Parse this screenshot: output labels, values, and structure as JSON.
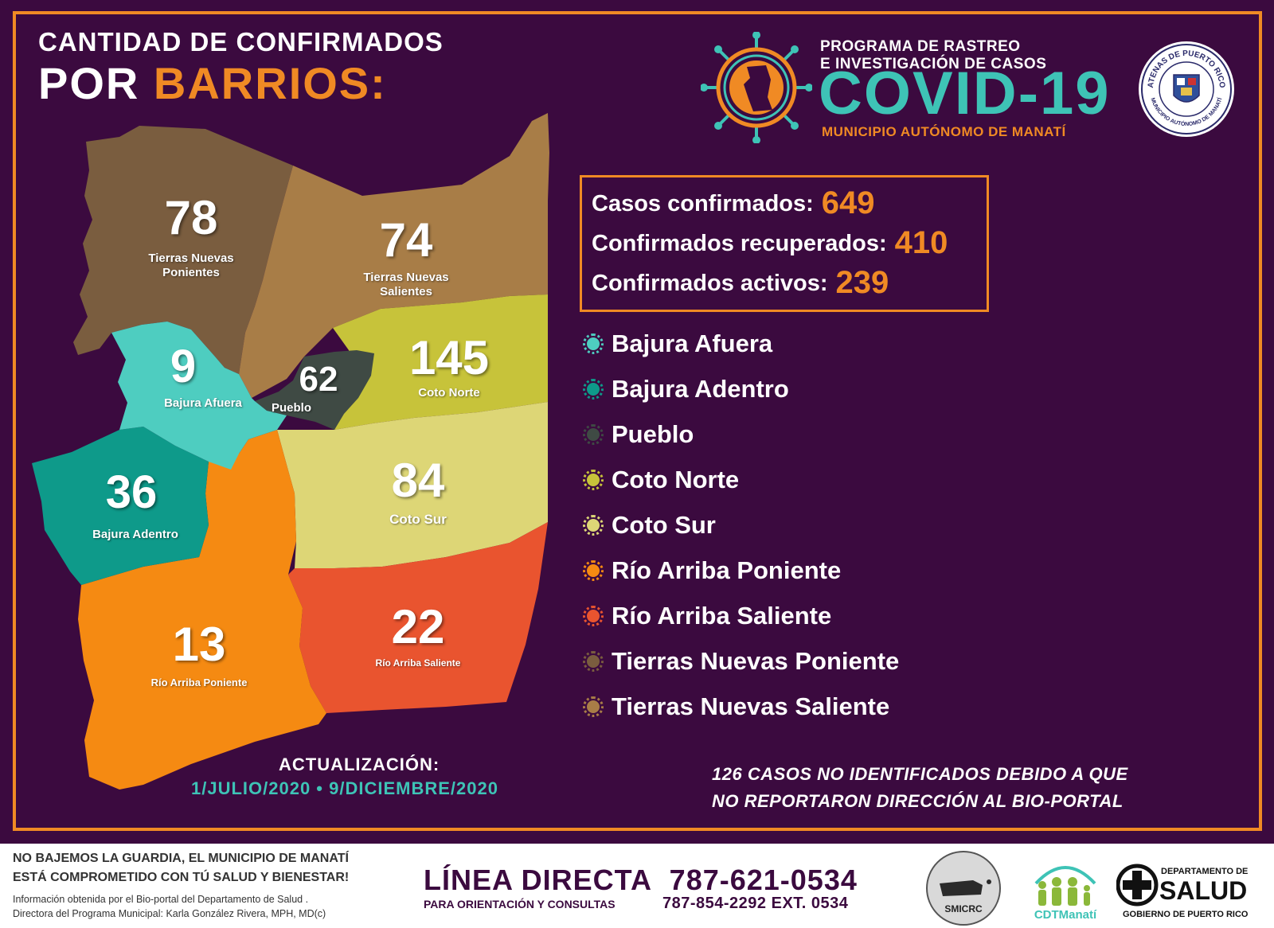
{
  "title": {
    "line1": "CANTIDAD DE CONFIRMADOS",
    "line2a": "POR",
    "line2b": "BARRIOS:"
  },
  "header": {
    "program_line1": "PROGRAMA DE RASTREO",
    "program_line2": "E INVESTIGACIÓN DE CASOS",
    "covid": "COVID-19",
    "municipality": "MUNICIPIO AUTÓNOMO DE MANATÍ",
    "seal_text_top": "ATENAS DE PUERTO RICO",
    "seal_text_bottom": "MUNICIPIO AUTÓNOMO DE MANATÍ"
  },
  "stats": {
    "confirmed_label": "Casos confirmados:",
    "confirmed_value": "649",
    "recovered_label": "Confirmados recuperados:",
    "recovered_value": "410",
    "active_label": "Confirmados activos:",
    "active_value": "239"
  },
  "barrios": [
    {
      "name": "Bajura Afuera",
      "count": "9",
      "map_label": "Bajura Afuera",
      "color": "#4ecdc0"
    },
    {
      "name": "Bajura Adentro",
      "count": "36",
      "map_label": "Bajura Adentro",
      "color": "#0e9a8a"
    },
    {
      "name": "Pueblo",
      "count": "62",
      "map_label": "Pueblo",
      "color": "#3f4a44"
    },
    {
      "name": "Coto Norte",
      "count": "145",
      "map_label": "Coto Norte",
      "color": "#c7c33a"
    },
    {
      "name": "Coto Sur",
      "count": "84",
      "map_label": "Coto Sur",
      "color": "#ddd676"
    },
    {
      "name": "Río Arriba Poniente",
      "count": "13",
      "map_label": "Río Arriba Poniente",
      "color": "#f58a12"
    },
    {
      "name": "Río Arriba Saliente",
      "count": "22",
      "map_label": "Río Arriba Saliente",
      "color": "#e9542f"
    },
    {
      "name": "Tierras Nuevas Poniente",
      "count": "78",
      "map_label_1": "Tierras Nuevas",
      "map_label_2": "Ponientes",
      "color": "#7a5d3f"
    },
    {
      "name": "Tierras Nuevas Saliente",
      "count": "74",
      "map_label_1": "Tierras Nuevas",
      "map_label_2": "Salientes",
      "color": "#a87d47"
    }
  ],
  "update": {
    "label": "ACTUALIZACIÓN:",
    "range": "1/JULIO/2020 • 9/DICIEMBRE/2020"
  },
  "note": {
    "line1": "126 CASOS NO IDENTIFICADOS DEBIDO A QUE",
    "line2": "NO REPORTARON DIRECCIÓN AL BIO-PORTAL"
  },
  "footer": {
    "slogan1": "NO BAJEMOS LA GUARDIA, EL MUNICIPIO DE MANATÍ",
    "slogan2": "ESTÁ COMPROMETIDO CON TÚ SALUD Y BIENESTAR!",
    "source": "Información obtenida por el Bio-portal del Departamento de Salud .",
    "director": "Directora del Programa Municipal: Karla González Rivera, MPH, MD(c)",
    "hotline_label": "LÍNEA DIRECTA",
    "hotline_number": "787-621-0534",
    "orientation": "PARA ORIENTACIÓN Y CONSULTAS",
    "alt_number": "787-854-2292  EXT. 0534",
    "logo1": "SMICRC",
    "logo2": "CDTManatí",
    "logo3_top": "DEPARTAMENTO DE",
    "logo3_main": "SALUD",
    "logo3_bottom": "GOBIERNO DE PUERTO RICO"
  }
}
